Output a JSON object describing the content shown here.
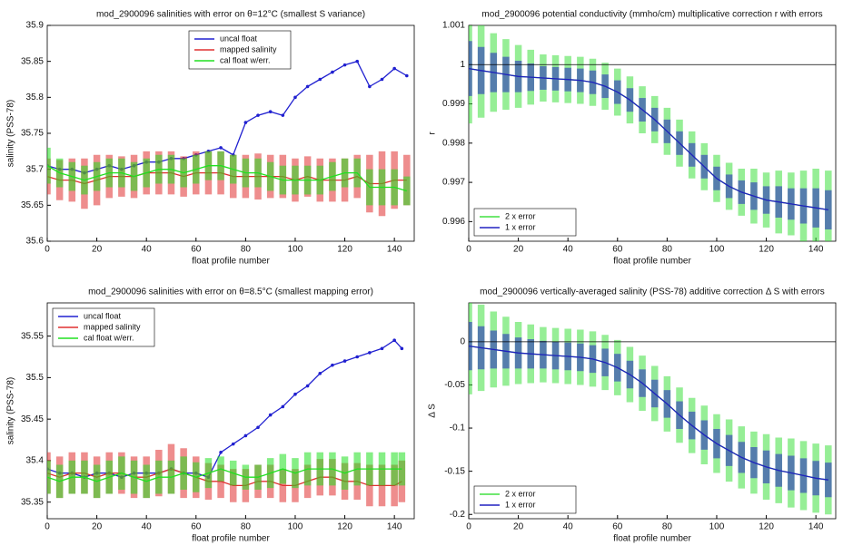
{
  "chart_data": [
    {
      "type": "line",
      "title": "mod_2900096 salinities with error on θ=12°C (smallest S variance)",
      "xlabel": "float profile number",
      "ylabel": "salinity (PSS-78)",
      "xlim": [
        0,
        148
      ],
      "xticks": [
        0,
        20,
        40,
        60,
        80,
        100,
        120,
        140
      ],
      "ylim": [
        35.6,
        35.9
      ],
      "yticks": [
        35.6,
        35.65,
        35.7,
        35.75,
        35.8,
        35.85,
        35.9
      ],
      "legend": "upper center",
      "x": [
        0,
        5,
        10,
        15,
        20,
        25,
        30,
        35,
        40,
        45,
        50,
        55,
        60,
        65,
        70,
        75,
        80,
        85,
        90,
        95,
        100,
        105,
        110,
        115,
        120,
        125,
        130,
        135,
        140,
        145
      ],
      "series": [
        {
          "name": "uncal float",
          "color": "#2020d0",
          "marker": true,
          "values": [
            35.705,
            35.7,
            35.7,
            35.695,
            35.7,
            35.705,
            35.7,
            35.705,
            35.71,
            35.71,
            35.715,
            35.715,
            35.72,
            35.725,
            35.73,
            35.72,
            35.765,
            35.775,
            35.78,
            35.775,
            35.8,
            35.815,
            35.825,
            35.835,
            35.845,
            35.85,
            35.815,
            35.825,
            35.84,
            35.83
          ]
        },
        {
          "name": "mapped salinity",
          "color": "#e03030",
          "values": [
            35.69,
            35.685,
            35.685,
            35.68,
            35.685,
            35.69,
            35.69,
            35.69,
            35.695,
            35.695,
            35.695,
            35.69,
            35.695,
            35.695,
            35.695,
            35.69,
            35.69,
            35.69,
            35.69,
            35.69,
            35.685,
            35.69,
            35.685,
            35.685,
            35.685,
            35.69,
            35.68,
            35.68,
            35.685,
            35.685
          ],
          "errors": [
            0.025,
            0.028,
            0.03,
            0.035,
            0.035,
            0.03,
            0.028,
            0.03,
            0.03,
            0.03,
            0.03,
            0.028,
            0.03,
            0.03,
            0.03,
            0.03,
            0.03,
            0.032,
            0.03,
            0.03,
            0.03,
            0.028,
            0.03,
            0.03,
            0.03,
            0.03,
            0.04,
            0.045,
            0.04,
            0.035
          ]
        },
        {
          "name": "cal float w/err.",
          "color": "#20e020",
          "values": [
            35.705,
            35.695,
            35.69,
            35.685,
            35.69,
            35.695,
            35.695,
            35.69,
            35.695,
            35.7,
            35.7,
            35.695,
            35.7,
            35.705,
            35.705,
            35.7,
            35.695,
            35.695,
            35.69,
            35.685,
            35.685,
            35.685,
            35.685,
            35.69,
            35.695,
            35.695,
            35.675,
            35.675,
            35.675,
            35.67
          ],
          "errors": [
            0.025,
            0.02,
            0.02,
            0.02,
            0.02,
            0.02,
            0.02,
            0.02,
            0.02,
            0.02,
            0.02,
            0.02,
            0.02,
            0.02,
            0.02,
            0.02,
            0.02,
            0.02,
            0.02,
            0.02,
            0.02,
            0.02,
            0.02,
            0.02,
            0.02,
            0.02,
            0.025,
            0.025,
            0.025,
            0.02
          ]
        }
      ]
    },
    {
      "type": "line",
      "title": "mod_2900096 potential conductivity (mmho/cm) multiplicative correction r with errors",
      "xlabel": "float profile number",
      "ylabel": "r",
      "xlim": [
        0,
        148
      ],
      "xticks": [
        0,
        20,
        40,
        60,
        80,
        100,
        120,
        140
      ],
      "ylim": [
        0.9955,
        1.001
      ],
      "yticks": [
        0.996,
        0.997,
        0.998,
        0.999,
        1,
        1.001
      ],
      "legend": "lower left",
      "hline": 1,
      "x": [
        0,
        5,
        10,
        15,
        20,
        25,
        30,
        35,
        40,
        45,
        50,
        55,
        60,
        65,
        70,
        75,
        80,
        85,
        90,
        95,
        100,
        105,
        110,
        115,
        120,
        125,
        130,
        135,
        140,
        145
      ],
      "series": [
        {
          "name": "2 x error",
          "color": "#40e040",
          "values": [
            0.9999,
            0.99985,
            0.9998,
            0.99975,
            0.9997,
            0.99968,
            0.99966,
            0.99964,
            0.99962,
            0.9996,
            0.99955,
            0.99945,
            0.9993,
            0.9991,
            0.99885,
            0.9986,
            0.9983,
            0.998,
            0.9977,
            0.9974,
            0.9971,
            0.9969,
            0.99675,
            0.99665,
            0.99655,
            0.9965,
            0.99645,
            0.9964,
            0.99635,
            0.9963
          ],
          "errors": [
            0.0014,
            0.0012,
            0.001,
            0.0009,
            0.0008,
            0.0007,
            0.0006,
            0.0006,
            0.0006,
            0.0006,
            0.0006,
            0.0006,
            0.0006,
            0.0006,
            0.0006,
            0.0006,
            0.0006,
            0.0006,
            0.0006,
            0.0006,
            0.0006,
            0.0006,
            0.0006,
            0.0007,
            0.0007,
            0.0008,
            0.0008,
            0.0009,
            0.001,
            0.001
          ]
        },
        {
          "name": "1 x error",
          "color": "#2020c0",
          "values": [
            0.9999,
            0.99985,
            0.9998,
            0.99975,
            0.9997,
            0.99968,
            0.99966,
            0.99964,
            0.99962,
            0.9996,
            0.99955,
            0.99945,
            0.9993,
            0.9991,
            0.99885,
            0.9986,
            0.9983,
            0.998,
            0.9977,
            0.9974,
            0.9971,
            0.9969,
            0.99675,
            0.99665,
            0.99655,
            0.9965,
            0.99645,
            0.9964,
            0.99635,
            0.9963
          ],
          "errors": [
            0.0007,
            0.0006,
            0.0005,
            0.00045,
            0.0004,
            0.00035,
            0.0003,
            0.0003,
            0.0003,
            0.0003,
            0.0003,
            0.0003,
            0.0003,
            0.0003,
            0.0003,
            0.0003,
            0.0003,
            0.0003,
            0.0003,
            0.0003,
            0.0003,
            0.0003,
            0.0003,
            0.00035,
            0.00035,
            0.0004,
            0.0004,
            0.00045,
            0.0005,
            0.0005
          ]
        }
      ]
    },
    {
      "type": "line",
      "title": "mod_2900096 salinities with error on θ=8.5°C (smallest mapping error)",
      "xlabel": "float profile number",
      "ylabel": "salinity (PSS-78)",
      "xlim": [
        0,
        148
      ],
      "xticks": [
        0,
        20,
        40,
        60,
        80,
        100,
        120,
        140
      ],
      "ylim": [
        35.33,
        35.59
      ],
      "yticks": [
        35.35,
        35.4,
        35.45,
        35.5,
        35.55
      ],
      "legend": "upper left",
      "x": [
        0,
        5,
        10,
        15,
        20,
        25,
        30,
        35,
        40,
        45,
        50,
        55,
        60,
        65,
        70,
        75,
        80,
        85,
        90,
        95,
        100,
        105,
        110,
        115,
        120,
        125,
        130,
        135,
        140,
        143
      ],
      "series": [
        {
          "name": "uncal float",
          "color": "#2020d0",
          "marker": true,
          "values": [
            35.39,
            35.385,
            35.385,
            35.38,
            35.385,
            35.385,
            35.38,
            35.385,
            35.385,
            35.385,
            35.39,
            35.385,
            35.385,
            35.38,
            35.41,
            35.42,
            35.43,
            35.44,
            35.455,
            35.465,
            35.48,
            35.49,
            35.505,
            35.515,
            35.52,
            35.525,
            35.53,
            35.535,
            35.545,
            35.535
          ]
        },
        {
          "name": "mapped salinity",
          "color": "#e03030",
          "values": [
            35.385,
            35.38,
            35.385,
            35.385,
            35.38,
            35.385,
            35.385,
            35.38,
            35.38,
            35.385,
            35.39,
            35.385,
            35.38,
            35.375,
            35.375,
            35.37,
            35.37,
            35.375,
            35.375,
            35.37,
            35.37,
            35.375,
            35.38,
            35.38,
            35.375,
            35.375,
            35.37,
            35.37,
            35.37,
            35.375
          ],
          "errors": [
            0.025,
            0.025,
            0.025,
            0.025,
            0.025,
            0.025,
            0.025,
            0.025,
            0.025,
            0.028,
            0.03,
            0.03,
            0.025,
            0.022,
            0.02,
            0.02,
            0.02,
            0.02,
            0.02,
            0.02,
            0.02,
            0.02,
            0.022,
            0.022,
            0.022,
            0.022,
            0.025,
            0.025,
            0.025,
            0.025
          ]
        },
        {
          "name": "cal float w/err.",
          "color": "#20e020",
          "values": [
            35.38,
            35.375,
            35.38,
            35.38,
            35.375,
            35.38,
            35.385,
            35.38,
            35.375,
            35.38,
            35.38,
            35.385,
            35.38,
            35.385,
            35.39,
            35.385,
            35.38,
            35.38,
            35.385,
            35.39,
            35.385,
            35.39,
            35.39,
            35.39,
            35.385,
            35.39,
            35.39,
            35.39,
            35.39,
            35.39
          ],
          "errors": [
            0.02,
            0.02,
            0.02,
            0.02,
            0.02,
            0.02,
            0.02,
            0.02,
            0.02,
            0.02,
            0.02,
            0.02,
            0.018,
            0.018,
            0.015,
            0.015,
            0.015,
            0.015,
            0.018,
            0.018,
            0.018,
            0.02,
            0.02,
            0.02,
            0.02,
            0.02,
            0.02,
            0.02,
            0.02,
            0.02
          ]
        }
      ]
    },
    {
      "type": "line",
      "title": "mod_2900096 vertically-averaged salinity (PSS-78) additive correction Δ S with errors",
      "xlabel": "float profile number",
      "ylabel": "Δ S",
      "xlim": [
        0,
        148
      ],
      "xticks": [
        0,
        20,
        40,
        60,
        80,
        100,
        120,
        140
      ],
      "ylim": [
        -0.205,
        0.045
      ],
      "yticks": [
        -0.2,
        -0.15,
        -0.1,
        -0.05,
        0
      ],
      "legend": "lower left",
      "hline": 0,
      "x": [
        0,
        5,
        10,
        15,
        20,
        25,
        30,
        35,
        40,
        45,
        50,
        55,
        60,
        65,
        70,
        75,
        80,
        85,
        90,
        95,
        100,
        105,
        110,
        115,
        120,
        125,
        130,
        135,
        140,
        145
      ],
      "series": [
        {
          "name": "2 x error",
          "color": "#40e040",
          "values": [
            -0.005,
            -0.007,
            -0.009,
            -0.011,
            -0.013,
            -0.014,
            -0.015,
            -0.016,
            -0.017,
            -0.018,
            -0.02,
            -0.024,
            -0.03,
            -0.038,
            -0.048,
            -0.06,
            -0.072,
            -0.085,
            -0.097,
            -0.108,
            -0.118,
            -0.126,
            -0.134,
            -0.14,
            -0.145,
            -0.149,
            -0.152,
            -0.155,
            -0.158,
            -0.16
          ],
          "errors": [
            0.056,
            0.05,
            0.044,
            0.04,
            0.036,
            0.034,
            0.032,
            0.032,
            0.032,
            0.032,
            0.032,
            0.032,
            0.032,
            0.032,
            0.032,
            0.032,
            0.032,
            0.032,
            0.032,
            0.034,
            0.034,
            0.036,
            0.036,
            0.036,
            0.038,
            0.038,
            0.04,
            0.04,
            0.04,
            0.04
          ]
        },
        {
          "name": "1 x error",
          "color": "#2020c0",
          "values": [
            -0.005,
            -0.007,
            -0.009,
            -0.011,
            -0.013,
            -0.014,
            -0.015,
            -0.016,
            -0.017,
            -0.018,
            -0.02,
            -0.024,
            -0.03,
            -0.038,
            -0.048,
            -0.06,
            -0.072,
            -0.085,
            -0.097,
            -0.108,
            -0.118,
            -0.126,
            -0.134,
            -0.14,
            -0.145,
            -0.149,
            -0.152,
            -0.155,
            -0.158,
            -0.16
          ],
          "errors": [
            0.028,
            0.025,
            0.022,
            0.02,
            0.018,
            0.017,
            0.016,
            0.016,
            0.016,
            0.016,
            0.016,
            0.016,
            0.016,
            0.016,
            0.016,
            0.016,
            0.016,
            0.016,
            0.016,
            0.017,
            0.017,
            0.018,
            0.018,
            0.018,
            0.019,
            0.019,
            0.02,
            0.02,
            0.02,
            0.02
          ]
        }
      ]
    }
  ]
}
